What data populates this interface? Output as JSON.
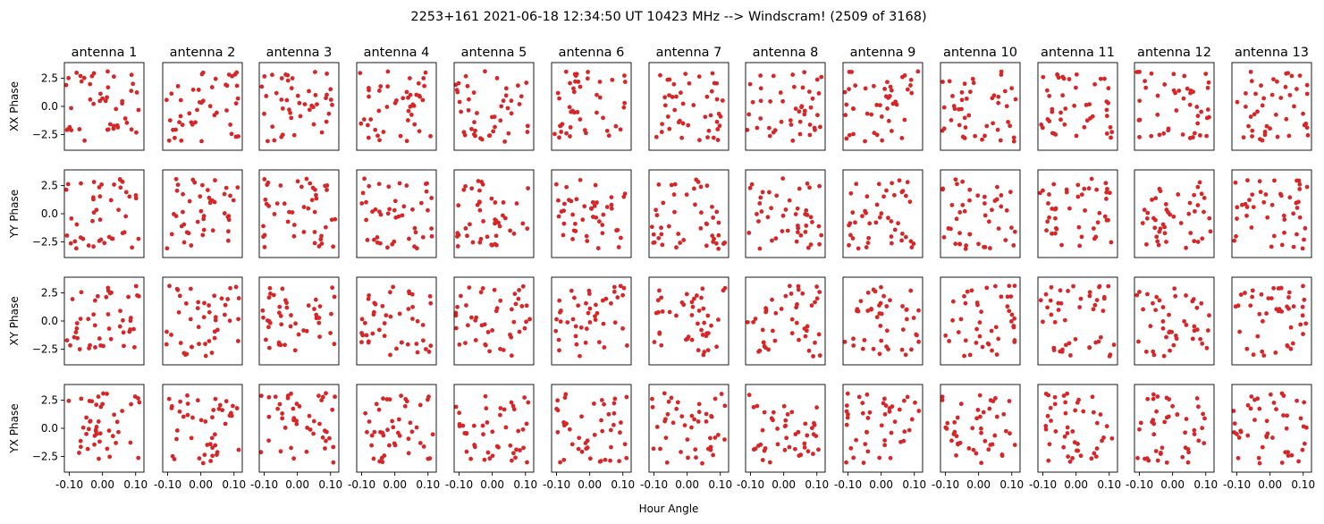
{
  "chart_data": {
    "type": "scatter",
    "title": "2253+161  2021-06-18 12:34:50 UT  10423 MHz  --> Windscram! (2509 of 3168)",
    "columns": [
      "antenna 1",
      "antenna 2",
      "antenna 3",
      "antenna 4",
      "antenna 5",
      "antenna 6",
      "antenna 7",
      "antenna 8",
      "antenna 9",
      "antenna 10",
      "antenna 11",
      "antenna 12",
      "antenna 13"
    ],
    "rows": [
      "XX Phase",
      "YY Phase",
      "XY Phase",
      "YX Phase"
    ],
    "xlabel": "Hour Angle",
    "xlim": [
      -0.115,
      0.125
    ],
    "ylim": [
      -3.9,
      3.9
    ],
    "xticks": [
      -0.1,
      0.0,
      0.1
    ],
    "xtick_labels": [
      "-0.10",
      "0.00",
      "0.10"
    ],
    "yticks": [
      2.5,
      0.0,
      -2.5
    ],
    "ytick_labels": [
      "2.5",
      "0.0",
      "−2.5"
    ],
    "points_per_panel": 45,
    "marker_color": "#d62728",
    "seed": 2509
  }
}
